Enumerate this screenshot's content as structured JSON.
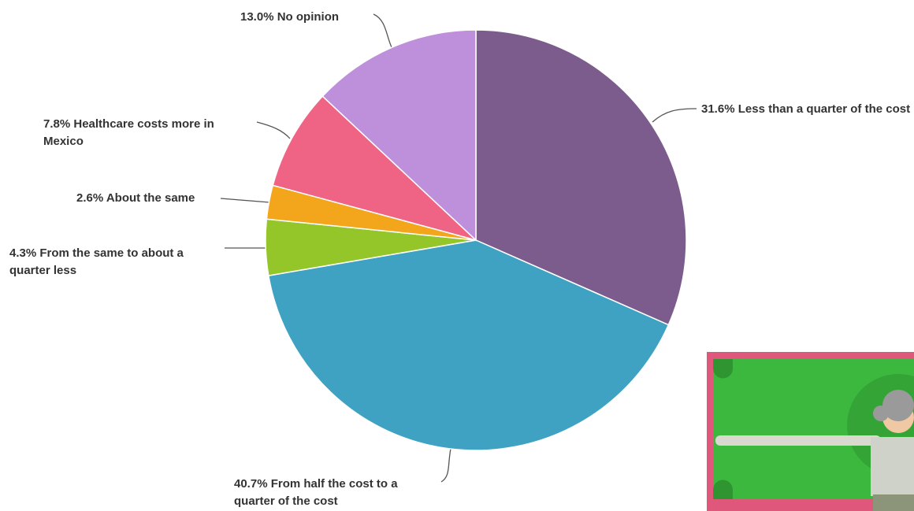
{
  "chart_data": {
    "type": "pie",
    "categories": [
      "Less than a quarter of the cost",
      "From half the cost to a quarter of the cost",
      "From the same to about a quarter less",
      "About the same",
      "Healthcare costs more in Mexico",
      "No opinion"
    ],
    "values": [
      31.6,
      40.7,
      4.3,
      2.6,
      7.8,
      13.0
    ],
    "value_labels": [
      "31.6%",
      "40.7%",
      "4.3%",
      "2.6%",
      "7.8%",
      "13.0%"
    ],
    "colors": [
      "#7b5c8c",
      "#3fa2c2",
      "#94c62a",
      "#f3a51c",
      "#ef6384",
      "#be8fdb"
    ]
  }
}
